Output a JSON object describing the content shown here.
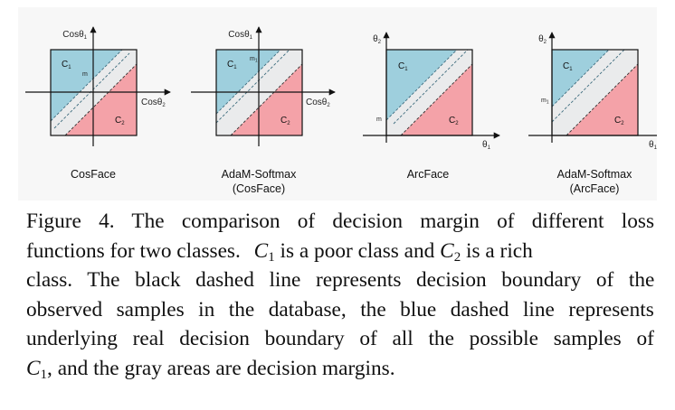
{
  "figure": {
    "colors": {
      "blue_region": "#9ecfdd",
      "red_region": "#f4a2a8",
      "gray_margin": "#eaebec",
      "blue_dash": "#3f6d7f",
      "black_dash": "#333333",
      "axis": "#111111"
    },
    "plots": [
      {
        "title_line1": "CosFace",
        "title_line2": "",
        "y_axis": "Cosθ",
        "y_sub": "1",
        "x_axis": "Cosθ",
        "x_sub": "2",
        "c1": "C",
        "c1_sub": "1",
        "c2": "C",
        "c2_sub": "2",
        "margin_label": "m"
      },
      {
        "title_line1": "AdaM-Softmax",
        "title_line2": "(CosFace)",
        "y_axis": "Cosθ",
        "y_sub": "1",
        "x_axis": "Cosθ",
        "x_sub": "2",
        "c1": "C",
        "c1_sub": "1",
        "c2": "C",
        "c2_sub": "2",
        "margin_label": "m",
        "margin_label_sub": "1"
      },
      {
        "title_line1": "ArcFace",
        "title_line2": "",
        "y_axis": "θ",
        "y_sub": "2",
        "x_axis": "θ",
        "x_sub": "1",
        "c1": "C",
        "c1_sub": "1",
        "c2": "C",
        "c2_sub": "2",
        "margin_label": "m"
      },
      {
        "title_line1": "AdaM-Softmax",
        "title_line2": "(ArcFace)",
        "y_axis": "θ",
        "y_sub": "2",
        "x_axis": "θ",
        "x_sub": "1",
        "c1": "C",
        "c1_sub": "1",
        "c2": "C",
        "c2_sub": "2",
        "margin_label": "m",
        "margin_label_sub": "1"
      }
    ]
  },
  "caption": {
    "label": "Figure 4.",
    "l1": "The comparison of decision margin of different loss",
    "l2a": "functions for two classes.",
    "c1_sym": "C",
    "c1_sub": "1",
    "l2b": "is a poor class and",
    "c2_sym": "C",
    "c2_sub": "2",
    "l2c": "is a rich",
    "l3": "class.  The black dashed line represents decision boundary of the",
    "l4": "observed samples in the database, the blue dashed line represents",
    "l5": "underlying real decision boundary of all the possible samples of",
    "l6b": ", and the gray areas are decision margins."
  }
}
